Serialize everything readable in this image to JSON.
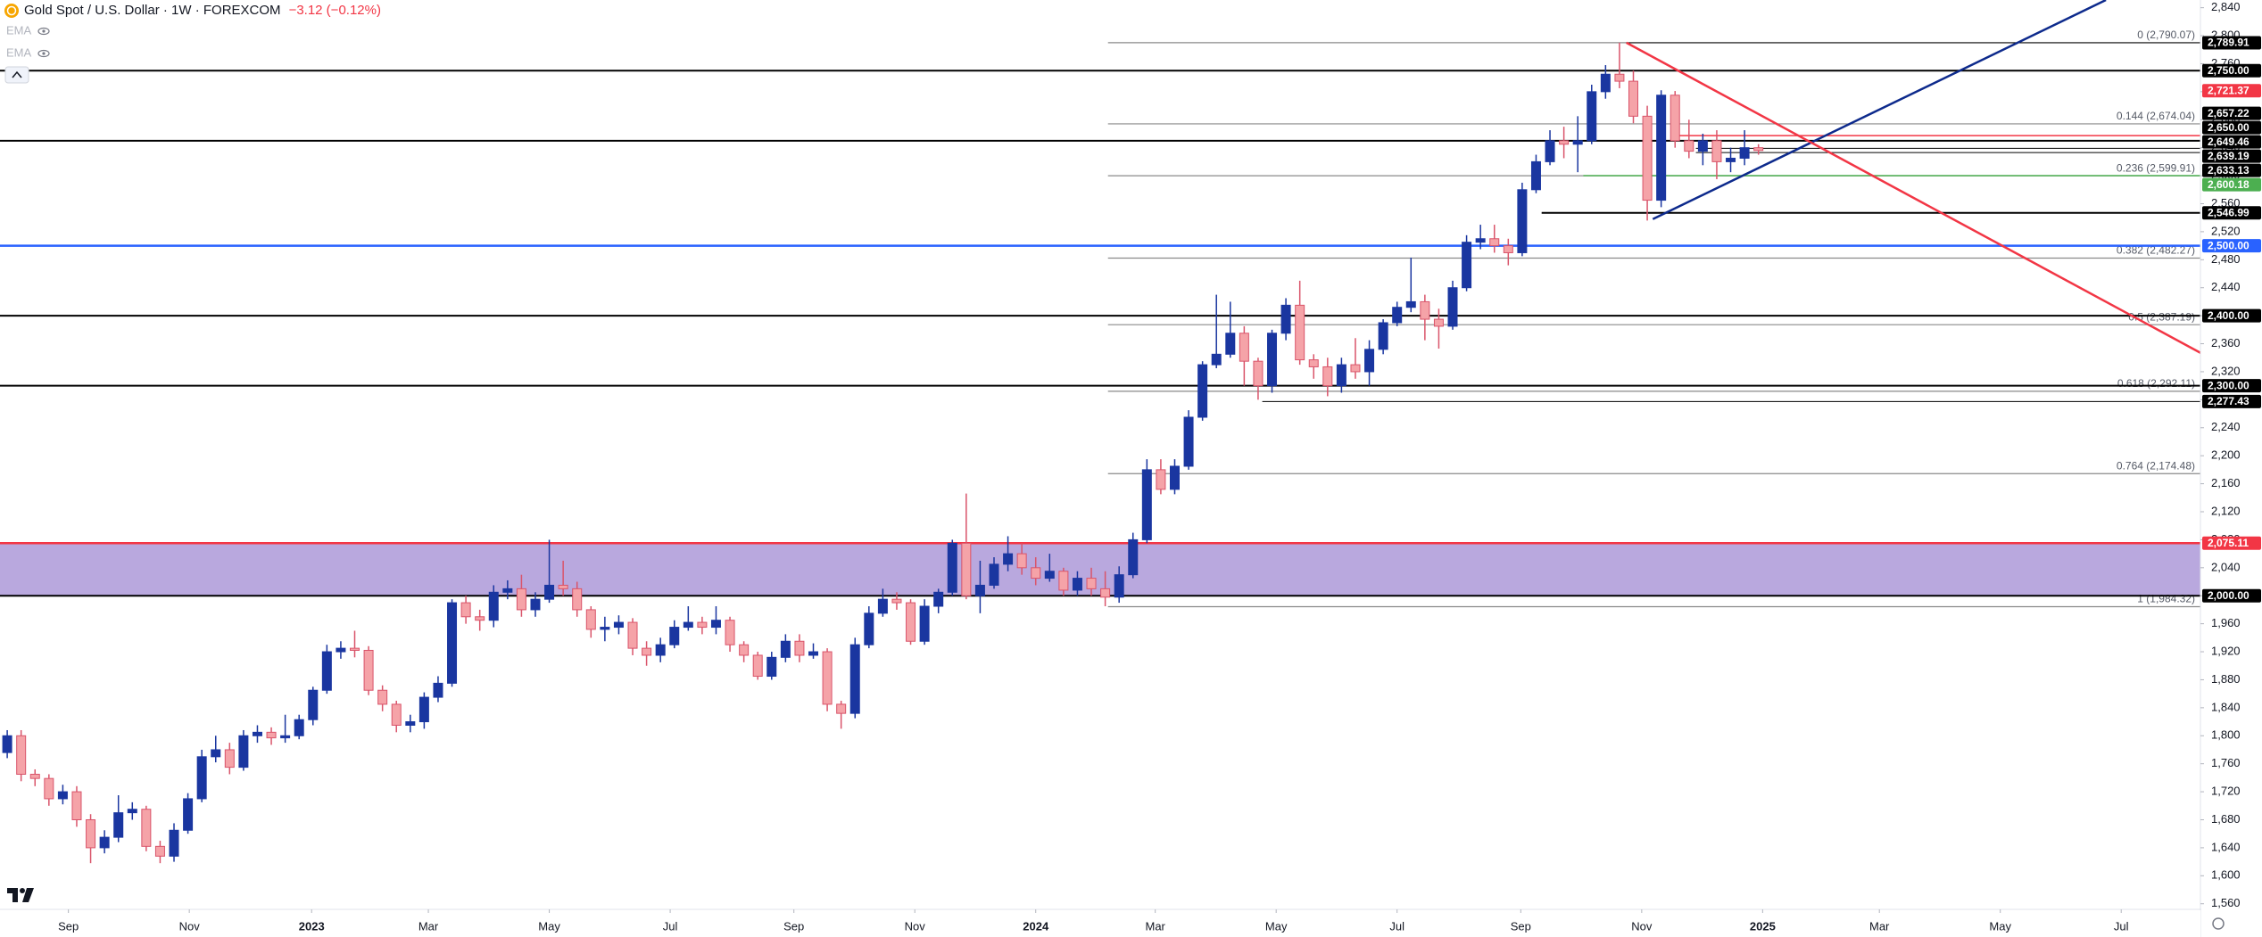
{
  "chart_data": {
    "type": "candlestick",
    "title": "Gold Spot / U.S. Dollar · 1W · FOREXCOM",
    "change": "−3.12 (−0.12%)",
    "indicators": [
      "EMA",
      "EMA"
    ],
    "x": [
      0,
      1,
      2,
      3,
      4,
      5,
      6,
      7,
      8,
      9,
      10,
      11,
      12,
      13,
      14,
      15,
      16,
      17,
      18,
      19,
      20,
      21,
      22,
      23,
      24,
      25,
      26,
      27,
      28,
      29,
      30,
      31,
      32,
      33,
      34,
      35,
      36,
      37,
      38,
      39,
      40,
      41,
      42,
      43,
      44,
      45,
      46,
      47,
      48,
      49,
      50,
      51,
      52,
      53,
      54,
      55,
      56,
      57,
      58,
      59,
      60,
      61,
      62,
      63,
      64,
      65,
      66,
      67,
      68,
      69,
      70,
      71,
      72,
      73,
      74,
      75,
      76,
      77,
      78,
      79,
      80,
      81,
      82,
      83,
      84,
      85,
      86,
      87,
      88,
      89,
      90,
      91,
      92,
      93,
      94,
      95,
      96,
      97,
      98,
      99,
      100,
      101,
      102,
      103,
      104,
      105,
      106,
      107,
      108,
      109,
      110,
      111,
      112,
      113,
      114,
      115,
      116,
      117,
      118,
      119,
      120,
      121,
      122,
      123,
      124,
      125,
      126
    ],
    "open": [
      1776,
      1800,
      1745,
      1739,
      1710,
      1720,
      1680,
      1640,
      1655,
      1690,
      1695,
      1642,
      1628,
      1665,
      1710,
      1770,
      1780,
      1755,
      1800,
      1805,
      1797,
      1800,
      1823,
      1865,
      1920,
      1925,
      1922,
      1865,
      1845,
      1815,
      1820,
      1855,
      1875,
      1990,
      1970,
      1965,
      2005,
      2010,
      1980,
      1995,
      2015,
      2010,
      1980,
      1952,
      1955,
      1962,
      1925,
      1915,
      1930,
      1955,
      1962,
      1955,
      1965,
      1930,
      1915,
      1885,
      1912,
      1935,
      1915,
      1920,
      1845,
      1832,
      1930,
      1975,
      1995,
      1990,
      1935,
      1985,
      2005,
      2075,
      2000,
      2015,
      2045,
      2060,
      2040,
      2025,
      2035,
      2008,
      2025,
      2010,
      1998,
      2030,
      2080,
      2180,
      2152,
      2185,
      2255,
      2330,
      2345,
      2375,
      2335,
      2300,
      2375,
      2415,
      2337,
      2327,
      2300,
      2330,
      2320,
      2352,
      2390,
      2412,
      2420,
      2395,
      2385,
      2440,
      2505,
      2510,
      2500,
      2490,
      2580,
      2620,
      2650,
      2645,
      2650,
      2720,
      2745,
      2735,
      2685,
      2565,
      2715,
      2650,
      2635,
      2650,
      2620,
      2625,
      2640
    ],
    "high": [
      1808,
      1808,
      1752,
      1745,
      1730,
      1728,
      1688,
      1665,
      1715,
      1705,
      1700,
      1650,
      1675,
      1718,
      1780,
      1800,
      1790,
      1808,
      1815,
      1812,
      1830,
      1830,
      1870,
      1930,
      1935,
      1950,
      1928,
      1872,
      1850,
      1830,
      1862,
      1885,
      1995,
      2000,
      1980,
      2015,
      2022,
      2030,
      2005,
      2080,
      2050,
      2020,
      1985,
      1970,
      1972,
      1968,
      1935,
      1940,
      1965,
      1985,
      1970,
      1985,
      1970,
      1935,
      1920,
      1920,
      1945,
      1945,
      1932,
      1925,
      1850,
      1940,
      1985,
      2010,
      2005,
      1995,
      1995,
      2010,
      2080,
      2146,
      2050,
      2055,
      2085,
      2075,
      2055,
      2060,
      2040,
      2035,
      2040,
      2035,
      2042,
      2090,
      2195,
      2195,
      2195,
      2265,
      2335,
      2430,
      2420,
      2385,
      2340,
      2380,
      2425,
      2450,
      2345,
      2340,
      2340,
      2368,
      2365,
      2395,
      2420,
      2483,
      2430,
      2410,
      2450,
      2515,
      2530,
      2530,
      2510,
      2590,
      2630,
      2665,
      2670,
      2685,
      2730,
      2758,
      2790,
      2750,
      2700,
      2722,
      2721,
      2680,
      2660,
      2665,
      2640,
      2665,
      2645
    ],
    "low": [
      1768,
      1735,
      1728,
      1700,
      1702,
      1670,
      1618,
      1632,
      1648,
      1680,
      1635,
      1618,
      1620,
      1660,
      1705,
      1762,
      1745,
      1750,
      1790,
      1787,
      1790,
      1795,
      1815,
      1860,
      1910,
      1912,
      1858,
      1835,
      1805,
      1805,
      1810,
      1848,
      1870,
      1960,
      1950,
      1955,
      1995,
      1970,
      1970,
      1990,
      2000,
      1970,
      1940,
      1935,
      1945,
      1915,
      1900,
      1905,
      1925,
      1950,
      1945,
      1945,
      1920,
      1905,
      1880,
      1880,
      1905,
      1905,
      1910,
      1835,
      1810,
      1825,
      1925,
      1970,
      1980,
      1930,
      1930,
      1975,
      2000,
      1995,
      1975,
      2010,
      2035,
      2030,
      2015,
      2020,
      2000,
      2000,
      2000,
      1985,
      1990,
      2025,
      2075,
      2145,
      2145,
      2180,
      2250,
      2325,
      2340,
      2300,
      2280,
      2290,
      2365,
      2330,
      2310,
      2285,
      2290,
      2310,
      2300,
      2345,
      2385,
      2405,
      2365,
      2353,
      2380,
      2435,
      2495,
      2490,
      2472,
      2485,
      2575,
      2615,
      2625,
      2605,
      2645,
      2710,
      2725,
      2675,
      2536,
      2555,
      2640,
      2625,
      2615,
      2595,
      2605,
      2615,
      2630
    ],
    "close": [
      1800,
      1745,
      1739,
      1710,
      1720,
      1680,
      1640,
      1655,
      1690,
      1695,
      1642,
      1628,
      1665,
      1710,
      1770,
      1780,
      1755,
      1800,
      1805,
      1797,
      1800,
      1823,
      1865,
      1920,
      1925,
      1922,
      1865,
      1845,
      1815,
      1820,
      1855,
      1875,
      1990,
      1970,
      1965,
      2005,
      2010,
      1980,
      1995,
      2015,
      2010,
      1980,
      1952,
      1955,
      1962,
      1925,
      1915,
      1930,
      1955,
      1962,
      1955,
      1965,
      1930,
      1915,
      1885,
      1912,
      1935,
      1915,
      1920,
      1845,
      1832,
      1930,
      1975,
      1995,
      1990,
      1935,
      1985,
      2005,
      2075,
      2000,
      2015,
      2045,
      2060,
      2040,
      2025,
      2035,
      2008,
      2025,
      2010,
      1998,
      2030,
      2080,
      2180,
      2152,
      2185,
      2255,
      2330,
      2345,
      2375,
      2335,
      2300,
      2375,
      2415,
      2337,
      2327,
      2300,
      2330,
      2320,
      2352,
      2390,
      2412,
      2420,
      2395,
      2385,
      2440,
      2505,
      2510,
      2500,
      2490,
      2580,
      2620,
      2650,
      2645,
      2650,
      2720,
      2745,
      2735,
      2685,
      2565,
      2715,
      2650,
      2635,
      2650,
      2620,
      2625,
      2640,
      2636
    ],
    "up_color": "#1a36a0",
    "down_color": "#f5a3a8",
    "down_border": "#d9546a",
    "xlim": [
      -0.52,
      157.8
    ],
    "xticks": [
      {
        "value": 4.4,
        "label": "Sep"
      },
      {
        "value": 13.1,
        "label": "Nov"
      },
      {
        "value": 21.9,
        "label": "2023"
      },
      {
        "value": 30.3,
        "label": "Mar"
      },
      {
        "value": 39,
        "label": "May"
      },
      {
        "value": 47.7,
        "label": "Jul"
      },
      {
        "value": 56.6,
        "label": "Sep"
      },
      {
        "value": 65.3,
        "label": "Nov"
      },
      {
        "value": 74,
        "label": "2024"
      },
      {
        "value": 82.6,
        "label": "Mar"
      },
      {
        "value": 91.3,
        "label": "May"
      },
      {
        "value": 100,
        "label": "Jul"
      },
      {
        "value": 108.9,
        "label": "Sep"
      },
      {
        "value": 117.6,
        "label": "Nov"
      },
      {
        "value": 126.3,
        "label": "2025"
      },
      {
        "value": 134.7,
        "label": "Mar"
      },
      {
        "value": 143.4,
        "label": "May"
      },
      {
        "value": 152.1,
        "label": "Jul"
      }
    ],
    "ylim": [
      1552,
      2851
    ],
    "yticks": [
      {
        "value": 2840,
        "label": "2,840"
      },
      {
        "value": 2800,
        "label": "2,800"
      },
      {
        "value": 2760,
        "label": "2,760"
      },
      {
        "value": 2720,
        "label": "2,720"
      },
      {
        "value": 2680,
        "label": "2,680"
      },
      {
        "value": 2640,
        "label": "2,640"
      },
      {
        "value": 2600,
        "label": "2,600"
      },
      {
        "value": 2560,
        "label": "2,560"
      },
      {
        "value": 2520,
        "label": "2,520"
      },
      {
        "value": 2480,
        "label": "2,480"
      },
      {
        "value": 2440,
        "label": "2,440"
      },
      {
        "value": 2400,
        "label": "2,400"
      },
      {
        "value": 2360,
        "label": "2,360"
      },
      {
        "value": 2320,
        "label": "2,320"
      },
      {
        "value": 2280,
        "label": "2,280"
      },
      {
        "value": 2240,
        "label": "2,240"
      },
      {
        "value": 2200,
        "label": "2,200"
      },
      {
        "value": 2160,
        "label": "2,160"
      },
      {
        "value": 2120,
        "label": "2,120"
      },
      {
        "value": 2080,
        "label": "2,080"
      },
      {
        "value": 2040,
        "label": "2,040"
      },
      {
        "value": 2000,
        "label": "2,000"
      },
      {
        "value": 1960,
        "label": "1,960"
      },
      {
        "value": 1920,
        "label": "1,920"
      },
      {
        "value": 1880,
        "label": "1,880"
      },
      {
        "value": 1840,
        "label": "1,840"
      },
      {
        "value": 1800,
        "label": "1,800"
      },
      {
        "value": 1760,
        "label": "1,760"
      },
      {
        "value": 1720,
        "label": "1,720"
      },
      {
        "value": 1680,
        "label": "1,680"
      },
      {
        "value": 1640,
        "label": "1,640"
      },
      {
        "value": 1600,
        "label": "1,600"
      },
      {
        "value": 1560,
        "label": "1,560"
      }
    ],
    "zone": {
      "values": [
        2000,
        2075.11
      ],
      "color": "#b9a8de"
    },
    "levels": [
      {
        "value": 2750,
        "color": "#000000",
        "width": 2
      },
      {
        "value": 2650,
        "color": "#000000",
        "width": 2
      },
      {
        "value": 2500,
        "color": "#2962ff",
        "width": 2.5
      },
      {
        "value": 2400,
        "color": "#000000",
        "width": 2
      },
      {
        "value": 2300,
        "color": "#000000",
        "width": 2
      },
      {
        "value": 2075.11,
        "color": "#f23645",
        "width": 2.5
      },
      {
        "value": 2000,
        "color": "#000000",
        "width": 2
      },
      {
        "value": 2789.91,
        "color": "#000000",
        "width": 1,
        "from": 116.5
      },
      {
        "value": 2657.22,
        "color": "#f23645",
        "width": 1.5,
        "from": 120.3
      },
      {
        "value": 2639.19,
        "color": "#000000",
        "width": 1,
        "from": 121.5
      },
      {
        "value": 2633.13,
        "color": "#000000",
        "width": 1,
        "from": 121.5
      },
      {
        "value": 2600.18,
        "color": "#4caf50",
        "width": 1.5,
        "from": 113.4
      },
      {
        "value": 2546.99,
        "color": "#000000",
        "width": 2,
        "from": 110.4
      },
      {
        "value": 2277.43,
        "color": "#000000",
        "width": 1,
        "from": 90.3
      }
    ],
    "fib": {
      "from": 79.2,
      "color": "#8a8a8a",
      "levels": [
        {
          "value": 2790.07,
          "label": "0 (2,790.07)"
        },
        {
          "value": 2674.04,
          "label": "0.144 (2,674.04)"
        },
        {
          "value": 2599.91,
          "label": "0.236 (2,599.91)"
        },
        {
          "value": 2482.27,
          "label": "0.382 (2,482.27)"
        },
        {
          "value": 2387.19,
          "label": "0.5 (2,387.19)"
        },
        {
          "value": 2292.11,
          "label": "0.618 (2,292.11)"
        },
        {
          "value": 2174.48,
          "label": "0.764 (2,174.48)"
        },
        {
          "value": 1984.32,
          "label": "1 (1,984.32)"
        }
      ]
    },
    "trendlines": [
      {
        "color": "#0d2a8c",
        "points": [
          [
            118.4,
            2538
          ],
          [
            151,
            2851
          ]
        ]
      },
      {
        "color": "#f23645",
        "points": [
          [
            116.5,
            2790
          ],
          [
            157.8,
            2347
          ]
        ]
      }
    ],
    "price_tags": [
      {
        "value": 2789.91,
        "label": "2,789.91",
        "color": "#000000"
      },
      {
        "value": 2750,
        "label": "2,750.00",
        "color": "#000000"
      },
      {
        "value": 2721.37,
        "label": "2,721.37",
        "color": "#f23645"
      },
      {
        "value": 2657.22,
        "label": "2,657.22",
        "color": "#000000"
      },
      {
        "value": 2650,
        "label": "2,650.00",
        "color": "#000000"
      },
      {
        "value": 2649.46,
        "label": "2,649.46",
        "color": "#000000"
      },
      {
        "value": 2639.19,
        "label": "2,639.19",
        "color": "#000000"
      },
      {
        "value": 2633.13,
        "label": "2,633.13",
        "color": "#000000"
      },
      {
        "value": 2600.18,
        "label": "2,600.18",
        "color": "#4caf50"
      },
      {
        "value": 2546.99,
        "label": "2,546.99",
        "color": "#000000"
      },
      {
        "value": 2500,
        "label": "2,500.00",
        "color": "#2962ff"
      },
      {
        "value": 2400,
        "label": "2,400.00",
        "color": "#000000"
      },
      {
        "value": 2300,
        "label": "2,300.00",
        "color": "#000000"
      },
      {
        "value": 2277.43,
        "label": "2,277.43",
        "color": "#000000"
      },
      {
        "value": 2075.11,
        "label": "2,075.11",
        "color": "#f23645"
      },
      {
        "value": 2000,
        "label": "2,000.00",
        "color": "#000000"
      }
    ]
  }
}
